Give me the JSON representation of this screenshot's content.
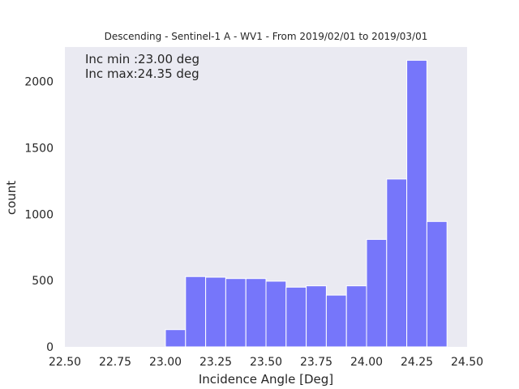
{
  "chart_data": {
    "type": "bar",
    "title": "Descending - Sentinel-1 A - WV1 - From 2019/02/01 to 2019/03/01",
    "xlabel": "Incidence Angle [Deg]",
    "ylabel": "count",
    "xlim": [
      22.5,
      24.5
    ],
    "ylim": [
      0,
      2260
    ],
    "xticks": [
      "22.50",
      "22.75",
      "23.00",
      "23.25",
      "23.50",
      "23.75",
      "24.00",
      "24.25",
      "24.50"
    ],
    "yticks": [
      "0",
      "500",
      "1000",
      "1500",
      "2000"
    ],
    "grid": false,
    "bar_color": "#7676fa",
    "bin_edges": [
      23.0,
      23.1,
      23.2,
      23.3,
      23.4,
      23.5,
      23.6,
      23.7,
      23.8,
      23.9,
      24.0,
      24.1,
      24.2,
      24.3,
      24.4
    ],
    "values": [
      130,
      530,
      525,
      515,
      515,
      495,
      450,
      460,
      390,
      460,
      810,
      1265,
      2160,
      945
    ],
    "annotations": [
      "Inc min :23.00 deg",
      "Inc max:24.35 deg"
    ]
  }
}
